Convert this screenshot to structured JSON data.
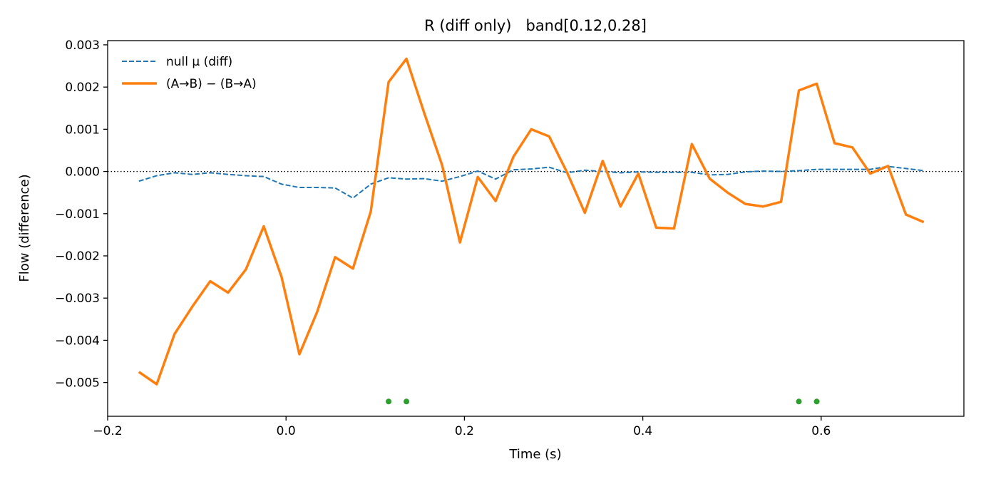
{
  "chart_data": {
    "type": "line",
    "title": "R (diff only)   band[0.12,0.28]",
    "xlabel": "Time (s)",
    "ylabel": "Flow (difference)",
    "xlim": [
      -0.2,
      0.76
    ],
    "ylim": [
      -0.0058,
      0.0031
    ],
    "x_ticks": [
      -0.2,
      0.0,
      0.2,
      0.4,
      0.6
    ],
    "x_tick_labels": [
      "−0.2",
      "0.0",
      "0.2",
      "0.4",
      "0.6"
    ],
    "y_ticks": [
      0.003,
      0.002,
      0.001,
      0.0,
      -0.001,
      -0.002,
      -0.003,
      -0.004,
      -0.005
    ],
    "y_tick_labels": [
      "0.003",
      "0.002",
      "0.001",
      "0.000",
      "−0.001",
      "−0.002",
      "−0.003",
      "−0.004",
      "−0.005"
    ],
    "grid": false,
    "legend_position": "top-left",
    "zero_line": {
      "y": 0.0,
      "style": "dotted",
      "color": "#000000"
    },
    "x": [
      -0.165,
      -0.145,
      -0.125,
      -0.105,
      -0.085,
      -0.065,
      -0.045,
      -0.025,
      -0.005,
      0.015,
      0.035,
      0.055,
      0.075,
      0.095,
      0.115,
      0.135,
      0.155,
      0.175,
      0.195,
      0.215,
      0.235,
      0.255,
      0.275,
      0.295,
      0.315,
      0.335,
      0.355,
      0.375,
      0.395,
      0.415,
      0.435,
      0.455,
      0.475,
      0.495,
      0.515,
      0.535,
      0.555,
      0.575,
      0.595,
      0.615,
      0.635,
      0.655,
      0.675,
      0.695,
      0.715
    ],
    "series": [
      {
        "name": "null μ (diff)",
        "style": "dashed",
        "color": "#1f77b4",
        "values": [
          -0.00023,
          -0.0001,
          -3e-05,
          -7e-05,
          -3e-05,
          -7e-05,
          -0.0001,
          -0.00012,
          -0.0003,
          -0.00038,
          -0.00038,
          -0.00039,
          -0.00063,
          -0.0003,
          -0.00015,
          -0.00018,
          -0.00017,
          -0.00023,
          -0.00012,
          1e-05,
          -0.00018,
          4e-05,
          6e-05,
          0.0001,
          -3e-05,
          3e-05,
          0.0,
          -3e-05,
          -1e-05,
          -2e-05,
          -2e-05,
          -2e-05,
          -8e-05,
          -7e-05,
          -1e-05,
          1e-05,
          0.0,
          2e-05,
          5e-05,
          5e-05,
          5e-05,
          5e-05,
          0.00012,
          7e-05,
          2e-05
        ]
      },
      {
        "name": "(A→B) − (B→A)",
        "style": "solid",
        "color": "#ff7f0e",
        "values": [
          -0.00475,
          -0.00504,
          -0.00385,
          -0.0032,
          -0.0026,
          -0.00287,
          -0.00232,
          -0.0013,
          -0.0025,
          -0.00433,
          -0.00332,
          -0.00203,
          -0.0023,
          -0.00095,
          0.00212,
          0.00267,
          0.00138,
          0.00015,
          -0.00168,
          -0.00013,
          -0.0007,
          0.00035,
          0.001,
          0.00083,
          -2e-05,
          -0.00098,
          0.00025,
          -0.00083,
          -5e-05,
          -0.00133,
          -0.00135,
          0.00065,
          -0.00017,
          -0.0005,
          -0.00077,
          -0.00083,
          -0.00072,
          0.00192,
          0.00208,
          0.00067,
          0.00057,
          -5e-05,
          0.00013,
          -0.00102,
          -0.0012
        ]
      }
    ],
    "markers": {
      "color": "#2ca02c",
      "x": [
        0.115,
        0.135,
        0.575,
        0.595
      ],
      "y": [
        -0.00545,
        -0.00545,
        -0.00545,
        -0.00545
      ]
    }
  }
}
